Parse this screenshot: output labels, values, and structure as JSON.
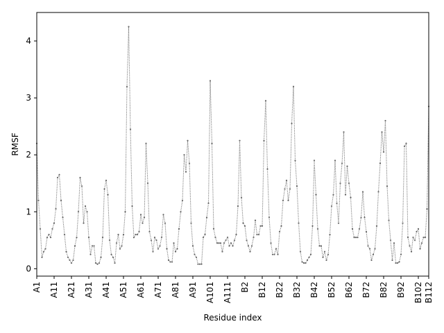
{
  "chart_data": {
    "type": "line",
    "title": "",
    "xlabel": "Residue index",
    "ylabel": "RMSF",
    "xlim": [
      0,
      226
    ],
    "ylim": [
      -0.13,
      4.5
    ],
    "y_ticks": [
      0,
      1,
      2,
      3,
      4
    ],
    "x_ticks": [
      {
        "pos": 0,
        "label": "A1"
      },
      {
        "pos": 10,
        "label": "A11"
      },
      {
        "pos": 20,
        "label": "A21"
      },
      {
        "pos": 30,
        "label": "A31"
      },
      {
        "pos": 40,
        "label": "A41"
      },
      {
        "pos": 50,
        "label": "A51"
      },
      {
        "pos": 60,
        "label": "A61"
      },
      {
        "pos": 70,
        "label": "A71"
      },
      {
        "pos": 80,
        "label": "A81"
      },
      {
        "pos": 90,
        "label": "A91"
      },
      {
        "pos": 100,
        "label": "A101"
      },
      {
        "pos": 110,
        "label": "A111"
      },
      {
        "pos": 120,
        "label": "B2"
      },
      {
        "pos": 130,
        "label": "B12"
      },
      {
        "pos": 140,
        "label": "B22"
      },
      {
        "pos": 150,
        "label": "B32"
      },
      {
        "pos": 160,
        "label": "B42"
      },
      {
        "pos": 170,
        "label": "B52"
      },
      {
        "pos": 180,
        "label": "B62"
      },
      {
        "pos": 190,
        "label": "B72"
      },
      {
        "pos": 200,
        "label": "B82"
      },
      {
        "pos": 210,
        "label": "B92"
      },
      {
        "pos": 220,
        "label": "B102"
      },
      {
        "pos": 226,
        "label": "B112"
      }
    ],
    "grid": false,
    "line_color": "#777777",
    "line_style": "dotted",
    "marker": "point",
    "series": [
      {
        "values": [
          2.2,
          1.2,
          0.7,
          0.2,
          0.3,
          0.35,
          0.55,
          0.6,
          0.55,
          0.7,
          0.8,
          1.05,
          1.6,
          1.65,
          1.2,
          0.9,
          0.6,
          0.3,
          0.2,
          0.15,
          0.1,
          0.15,
          0.4,
          0.55,
          1.0,
          1.6,
          1.45,
          0.8,
          1.1,
          1.0,
          0.55,
          0.25,
          0.4,
          0.4,
          0.1,
          0.08,
          0.1,
          0.2,
          0.55,
          1.4,
          1.55,
          1.3,
          0.5,
          0.25,
          0.2,
          0.1,
          0.45,
          0.6,
          0.35,
          0.4,
          0.6,
          1.0,
          3.2,
          4.25,
          2.45,
          1.1,
          0.55,
          0.6,
          0.6,
          0.65,
          0.95,
          0.8,
          0.9,
          2.2,
          1.5,
          0.65,
          0.5,
          0.3,
          0.55,
          0.5,
          0.35,
          0.4,
          0.55,
          0.95,
          0.8,
          0.35,
          0.15,
          0.12,
          0.12,
          0.45,
          0.3,
          0.35,
          0.7,
          1.0,
          1.2,
          2.0,
          1.7,
          2.25,
          1.85,
          0.8,
          0.4,
          0.25,
          0.2,
          0.08,
          0.08,
          0.08,
          0.55,
          0.6,
          0.9,
          1.15,
          3.3,
          2.2,
          0.7,
          0.55,
          0.45,
          0.45,
          0.45,
          0.3,
          0.45,
          0.5,
          0.55,
          0.4,
          0.45,
          0.4,
          0.5,
          0.6,
          1.1,
          2.25,
          1.25,
          0.8,
          0.75,
          0.5,
          0.4,
          0.3,
          0.4,
          0.55,
          0.85,
          0.6,
          0.6,
          0.75,
          0.75,
          2.25,
          2.95,
          1.75,
          0.9,
          0.45,
          0.25,
          0.25,
          0.35,
          0.25,
          0.65,
          0.75,
          1.2,
          1.4,
          1.55,
          1.2,
          1.4,
          2.55,
          3.2,
          1.9,
          1.45,
          0.8,
          0.3,
          0.12,
          0.1,
          0.1,
          0.15,
          0.2,
          0.25,
          0.75,
          1.9,
          1.3,
          0.7,
          0.4,
          0.4,
          0.2,
          0.3,
          0.15,
          0.25,
          0.6,
          1.1,
          1.3,
          1.9,
          1.15,
          0.8,
          1.5,
          1.85,
          2.4,
          1.3,
          1.8,
          1.5,
          1.25,
          0.7,
          0.55,
          0.55,
          0.55,
          0.7,
          0.9,
          1.35,
          0.9,
          0.65,
          0.4,
          0.35,
          0.15,
          0.25,
          0.35,
          0.75,
          1.35,
          1.85,
          2.4,
          2.05,
          2.6,
          1.45,
          0.85,
          0.5,
          0.15,
          0.45,
          0.1,
          0.1,
          0.12,
          0.25,
          0.8,
          2.15,
          2.2,
          0.55,
          0.4,
          0.3,
          0.55,
          0.5,
          0.65,
          0.7,
          0.35,
          0.45,
          0.55,
          0.55,
          1.05,
          2.85
        ]
      }
    ]
  }
}
